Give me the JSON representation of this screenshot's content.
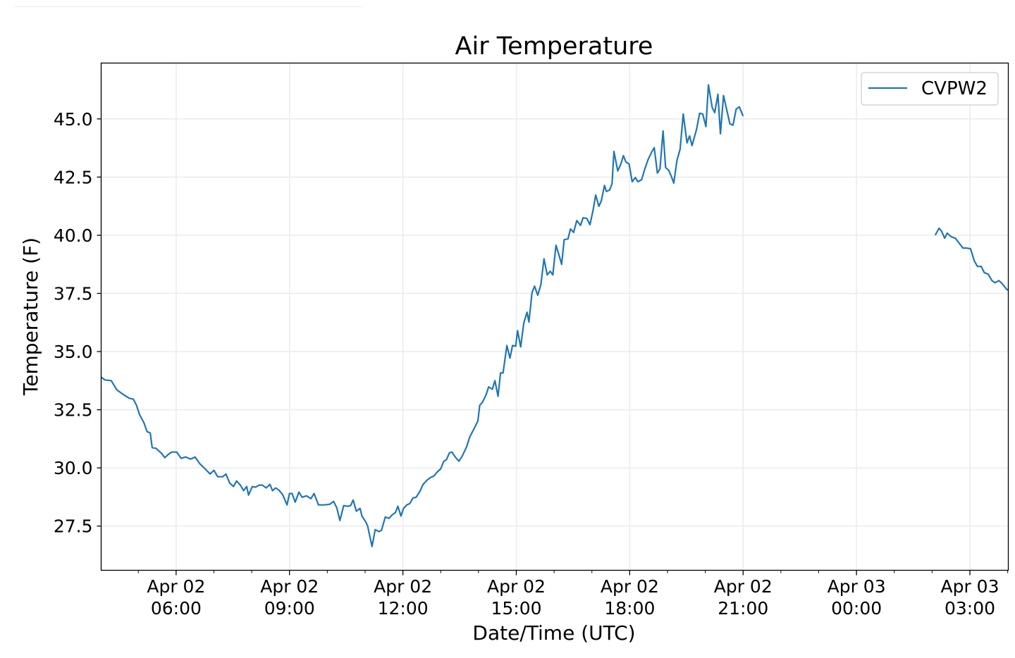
{
  "chart_data": {
    "type": "line",
    "title": "Air Temperature",
    "xlabel": "Date/Time (UTC)",
    "ylabel": "Temperature (F)",
    "x_units": "minutes since Apr 02 00:00 UTC",
    "xlim": [
      241,
      1681
    ],
    "ylim": [
      25.6,
      47.4
    ],
    "grid": true,
    "legend": {
      "position": "top-right",
      "entries": [
        "CVPW2"
      ]
    },
    "color": "#1f77b4",
    "yticks": [
      27.5,
      30.0,
      32.5,
      35.0,
      37.5,
      40.0,
      42.5,
      45.0
    ],
    "ytick_labels": [
      "27.5",
      "30.0",
      "32.5",
      "35.0",
      "37.5",
      "40.0",
      "42.5",
      "45.0"
    ],
    "xticks": [
      360,
      540,
      720,
      900,
      1080,
      1260,
      1440,
      1620
    ],
    "xtick_labels": [
      [
        "Apr 02",
        "06:00"
      ],
      [
        "Apr 02",
        "09:00"
      ],
      [
        "Apr 02",
        "12:00"
      ],
      [
        "Apr 02",
        "15:00"
      ],
      [
        "Apr 02",
        "18:00"
      ],
      [
        "Apr 02",
        "21:00"
      ],
      [
        "Apr 03",
        "00:00"
      ],
      [
        "Apr 03",
        "03:00"
      ]
    ],
    "series": [
      {
        "name": "CVPW2",
        "segments": [
          [
            [
              241,
              33.9
            ],
            [
              247,
              33.78
            ],
            [
              257,
              33.75
            ],
            [
              266,
              33.35
            ],
            [
              277,
              33.14
            ],
            [
              286,
              32.99
            ],
            [
              292,
              32.96
            ],
            [
              297,
              32.69
            ],
            [
              302,
              32.29
            ],
            [
              309,
              31.93
            ],
            [
              314,
              31.56
            ],
            [
              319,
              31.5
            ],
            [
              322,
              30.87
            ],
            [
              328,
              30.84
            ],
            [
              337,
              30.62
            ],
            [
              342,
              30.44
            ],
            [
              348,
              30.59
            ],
            [
              353,
              30.68
            ],
            [
              361,
              30.68
            ],
            [
              368,
              30.41
            ],
            [
              375,
              30.47
            ],
            [
              383,
              30.38
            ],
            [
              390,
              30.47
            ],
            [
              398,
              30.17
            ],
            [
              406,
              29.96
            ],
            [
              414,
              29.74
            ],
            [
              420,
              29.9
            ],
            [
              426,
              29.62
            ],
            [
              434,
              29.62
            ],
            [
              439,
              29.74
            ],
            [
              445,
              29.35
            ],
            [
              451,
              29.2
            ],
            [
              456,
              29.44
            ],
            [
              462,
              29.26
            ],
            [
              467,
              29.02
            ],
            [
              472,
              29.2
            ],
            [
              475,
              28.83
            ],
            [
              481,
              29.2
            ],
            [
              486,
              29.17
            ],
            [
              492,
              29.26
            ],
            [
              497,
              29.26
            ],
            [
              503,
              29.14
            ],
            [
              509,
              29.29
            ],
            [
              513,
              29.02
            ],
            [
              518,
              29.14
            ],
            [
              523,
              29.05
            ],
            [
              529,
              28.86
            ],
            [
              536,
              28.41
            ],
            [
              540,
              28.9
            ],
            [
              544,
              28.9
            ],
            [
              549,
              28.53
            ],
            [
              555,
              28.96
            ],
            [
              560,
              28.74
            ],
            [
              567,
              28.8
            ],
            [
              574,
              28.68
            ],
            [
              579,
              28.9
            ],
            [
              586,
              28.41
            ],
            [
              596,
              28.41
            ],
            [
              604,
              28.44
            ],
            [
              610,
              28.56
            ],
            [
              615,
              28.29
            ],
            [
              620,
              27.74
            ],
            [
              626,
              28.38
            ],
            [
              632,
              28.35
            ],
            [
              637,
              28.38
            ],
            [
              641,
              28.62
            ],
            [
              646,
              28.14
            ],
            [
              652,
              28.26
            ],
            [
              655,
              27.93
            ],
            [
              661,
              27.68
            ],
            [
              664,
              27.5
            ],
            [
              671,
              26.62
            ],
            [
              676,
              27.35
            ],
            [
              682,
              27.26
            ],
            [
              686,
              27.32
            ],
            [
              692,
              27.89
            ],
            [
              698,
              27.83
            ],
            [
              703,
              27.98
            ],
            [
              708,
              28.08
            ],
            [
              712,
              28.35
            ],
            [
              717,
              27.93
            ],
            [
              721,
              28.26
            ],
            [
              726,
              28.41
            ],
            [
              731,
              28.47
            ],
            [
              736,
              28.71
            ],
            [
              741,
              28.74
            ],
            [
              747,
              28.99
            ],
            [
              752,
              29.29
            ],
            [
              758,
              29.47
            ],
            [
              764,
              29.59
            ],
            [
              769,
              29.65
            ],
            [
              775,
              29.84
            ],
            [
              780,
              29.96
            ],
            [
              785,
              30.29
            ],
            [
              789,
              30.35
            ],
            [
              794,
              30.65
            ],
            [
              798,
              30.68
            ],
            [
              803,
              30.47
            ],
            [
              809,
              30.29
            ],
            [
              814,
              30.5
            ],
            [
              821,
              30.9
            ],
            [
              826,
              31.32
            ],
            [
              833,
              31.69
            ],
            [
              839,
              32.02
            ],
            [
              842,
              32.69
            ],
            [
              846,
              32.81
            ],
            [
              852,
              33.14
            ],
            [
              856,
              33.48
            ],
            [
              862,
              33.38
            ],
            [
              866,
              33.75
            ],
            [
              871,
              33.08
            ],
            [
              875,
              34.08
            ],
            [
              879,
              34.08
            ],
            [
              885,
              35.26
            ],
            [
              890,
              34.72
            ],
            [
              894,
              35.26
            ],
            [
              899,
              35.23
            ],
            [
              902,
              35.9
            ],
            [
              907,
              35.2
            ],
            [
              912,
              36.24
            ],
            [
              917,
              36.69
            ],
            [
              920,
              36.27
            ],
            [
              925,
              37.54
            ],
            [
              929,
              37.81
            ],
            [
              934,
              37.42
            ],
            [
              939,
              37.87
            ],
            [
              944,
              38.99
            ],
            [
              949,
              38.3
            ],
            [
              954,
              38.45
            ],
            [
              958,
              38.3
            ],
            [
              963,
              39.57
            ],
            [
              968,
              39.12
            ],
            [
              972,
              38.75
            ],
            [
              976,
              39.81
            ],
            [
              982,
              39.84
            ],
            [
              986,
              40.27
            ],
            [
              991,
              40.12
            ],
            [
              996,
              40.63
            ],
            [
              1002,
              40.42
            ],
            [
              1006,
              40.75
            ],
            [
              1012,
              40.72
            ],
            [
              1017,
              40.45
            ],
            [
              1022,
              41.09
            ],
            [
              1026,
              41.73
            ],
            [
              1031,
              41.24
            ],
            [
              1035,
              41.48
            ],
            [
              1040,
              42.14
            ],
            [
              1043,
              41.88
            ],
            [
              1048,
              41.94
            ],
            [
              1052,
              42.21
            ],
            [
              1055,
              43.6
            ],
            [
              1061,
              42.76
            ],
            [
              1066,
              43.06
            ],
            [
              1070,
              43.42
            ],
            [
              1074,
              43.15
            ],
            [
              1079,
              43.06
            ],
            [
              1084,
              42.3
            ],
            [
              1089,
              42.48
            ],
            [
              1093,
              42.3
            ],
            [
              1099,
              42.39
            ],
            [
              1104,
              42.85
            ],
            [
              1109,
              43.24
            ],
            [
              1115,
              43.58
            ],
            [
              1119,
              43.76
            ],
            [
              1124,
              42.67
            ],
            [
              1128,
              42.85
            ],
            [
              1133,
              44.48
            ],
            [
              1137,
              42.91
            ],
            [
              1142,
              42.79
            ],
            [
              1146,
              42.54
            ],
            [
              1150,
              42.24
            ],
            [
              1155,
              43.21
            ],
            [
              1160,
              43.7
            ],
            [
              1165,
              45.21
            ],
            [
              1171,
              43.97
            ],
            [
              1175,
              44.27
            ],
            [
              1179,
              43.85
            ],
            [
              1186,
              44.54
            ],
            [
              1191,
              45.24
            ],
            [
              1196,
              45.21
            ],
            [
              1201,
              44.67
            ],
            [
              1205,
              46.46
            ],
            [
              1211,
              45.49
            ],
            [
              1215,
              45.27
            ],
            [
              1220,
              46.06
            ],
            [
              1224,
              44.36
            ],
            [
              1229,
              46.0
            ],
            [
              1233,
              45.52
            ],
            [
              1239,
              44.79
            ],
            [
              1244,
              44.73
            ],
            [
              1249,
              45.42
            ],
            [
              1254,
              45.52
            ],
            [
              1260,
              45.12
            ]
          ],
          [
            [
              1565,
              40.0
            ],
            [
              1571,
              40.3
            ],
            [
              1575,
              40.18
            ],
            [
              1580,
              39.87
            ],
            [
              1584,
              40.09
            ],
            [
              1590,
              39.94
            ],
            [
              1597,
              39.87
            ],
            [
              1602,
              39.69
            ],
            [
              1609,
              39.45
            ],
            [
              1614,
              39.45
            ],
            [
              1621,
              39.42
            ],
            [
              1627,
              38.9
            ],
            [
              1632,
              38.66
            ],
            [
              1638,
              38.66
            ],
            [
              1643,
              38.39
            ],
            [
              1649,
              38.33
            ],
            [
              1655,
              38.05
            ],
            [
              1660,
              37.96
            ],
            [
              1666,
              38.05
            ],
            [
              1671,
              37.93
            ],
            [
              1678,
              37.69
            ],
            [
              1681,
              37.63
            ]
          ]
        ]
      }
    ]
  }
}
